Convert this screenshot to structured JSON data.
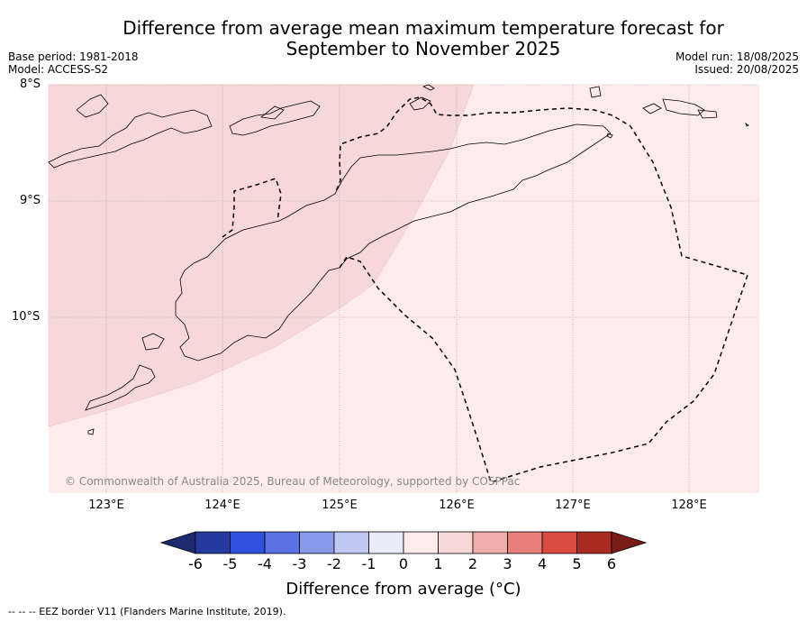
{
  "title_line1": "Difference from average mean maximum temperature forecast for",
  "title_line2": "September to November 2025",
  "base_period": "Base period: 1981-2018",
  "model": "Model: ACCESS-S2",
  "model_run": "Model run: 18/08/2025",
  "issued": "Issued: 20/08/2025",
  "lat_labels": [
    "8°S",
    "9°S",
    "10°S"
  ],
  "lon_labels": [
    "123°E",
    "124°E",
    "125°E",
    "126°E",
    "127°E",
    "128°E"
  ],
  "copyright": "© Commonwealth of Australia 2025, Bureau of Meteorology, supported by COSPPac",
  "colorbar": {
    "ticks": [
      "-6",
      "-5",
      "-4",
      "-3",
      "-2",
      "-1",
      "0",
      "1",
      "2",
      "3",
      "4",
      "5",
      "6"
    ],
    "colors": [
      "#243a9e",
      "#3050e0",
      "#5a72e6",
      "#8799e8",
      "#c1c9f3",
      "#eaecfa",
      "#fdeceb",
      "#f7d8d8",
      "#efaeab",
      "#e68078",
      "#d94a40",
      "#a92b22"
    ],
    "under_color": "#1c2a6e",
    "over_color": "#7a1c16",
    "label": "Difference from average (°C)"
  },
  "map_fill": {
    "range_0_1_color": "#fdeceb",
    "range_1_2_color": "#f7d8d8"
  },
  "footnote": "--  --  -- EEZ border V11 (Flanders Marine Institute, 2019)."
}
